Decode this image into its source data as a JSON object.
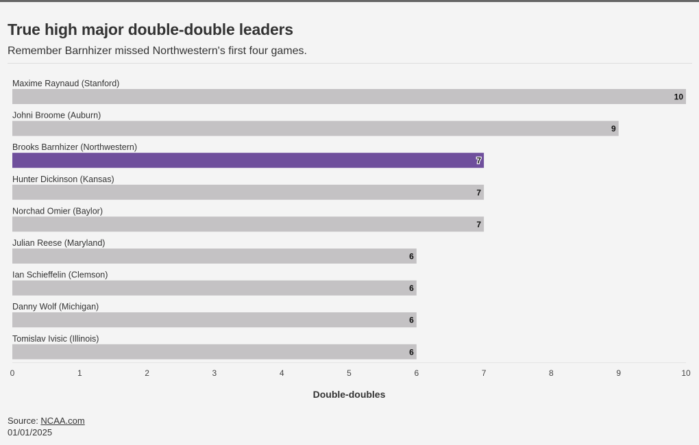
{
  "header": {
    "title": "True high major double-double leaders",
    "subtitle": "Remember Barnhizer missed Northwestern's first four games."
  },
  "footer": {
    "source_label": "Source: ",
    "source_link": "NCAA.com",
    "date": "01/01/2025"
  },
  "colors": {
    "bar_default": "#c4c2c4",
    "bar_highlight": "#6f4f9c",
    "label_text": "#333333",
    "value_text": "#111111",
    "axis_text": "#444444",
    "background": "#f4f4f4"
  },
  "chart_data": {
    "type": "bar",
    "orientation": "horizontal",
    "categories": [
      "Maxime Raynaud (Stanford)",
      "Johni Broome (Auburn)",
      "Brooks Barnhizer (Northwestern)",
      "Hunter Dickinson (Kansas)",
      "Norchad Omier (Baylor)",
      "Julian Reese (Maryland)",
      "Ian Schieffelin (Clemson)",
      "Danny Wolf (Michigan)",
      "Tomislav Ivisic (Illinois)"
    ],
    "values": [
      10,
      9,
      7,
      7,
      7,
      6,
      6,
      6,
      6
    ],
    "highlight": "Brooks Barnhizer (Northwestern)",
    "xlabel": "Double-doubles",
    "xlim": [
      0,
      10
    ],
    "xticks": [
      0,
      1,
      2,
      3,
      4,
      5,
      6,
      7,
      8,
      9,
      10
    ],
    "grid": false,
    "data_labels": true
  }
}
